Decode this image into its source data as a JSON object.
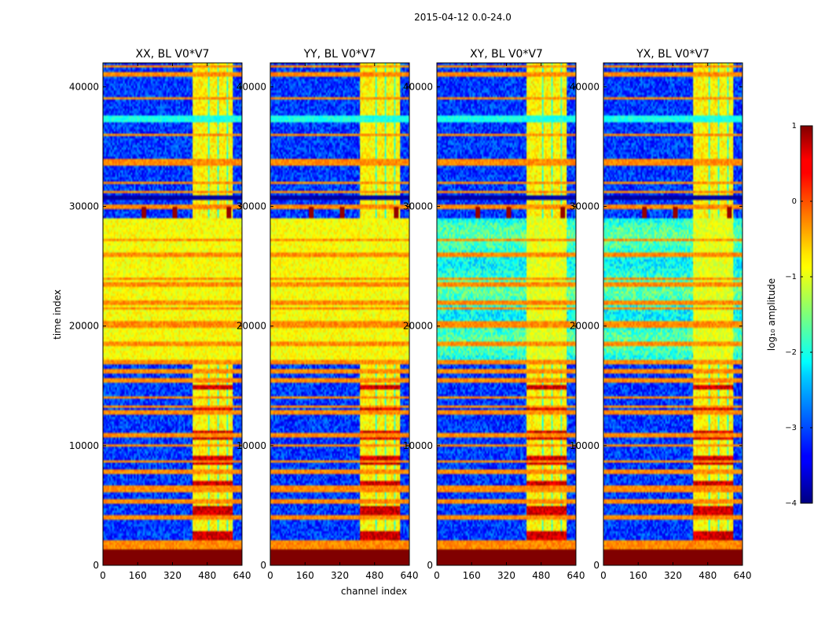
{
  "chart_data": {
    "type": "heatmap",
    "suptitle": "2015-04-12 0.0-24.0",
    "xlabel": "channel index",
    "ylabel": "time index",
    "xlim": [
      0,
      640
    ],
    "ylim": [
      0,
      42000
    ],
    "xticks": [
      0,
      160,
      320,
      480,
      640
    ],
    "yticks": [
      0,
      10000,
      20000,
      30000,
      40000
    ],
    "colorscale": "jet",
    "colorbar": {
      "label": "log₁₀ amplitude",
      "range": [
        -4,
        1
      ],
      "ticks": [
        "1",
        "0",
        "−1",
        "−2",
        "−3",
        "−4"
      ],
      "tick_values": [
        1,
        0,
        -1,
        -2,
        -3,
        -4
      ]
    },
    "panels": [
      {
        "title": "XX, BL V0*V7",
        "pol": "XX"
      },
      {
        "title": "YY, BL V0*V7",
        "pol": "YY"
      },
      {
        "title": "XY, BL V0*V7",
        "pol": "XY"
      },
      {
        "title": "YX, BL V0*V7",
        "pol": "YX"
      }
    ],
    "structure": {
      "saturated_time_range": [
        0,
        1300
      ],
      "bright_channel_range": [
        410,
        600
      ],
      "bright_time_blocks": [
        [
          1700,
          30500
        ],
        [
          30500,
          42000
        ]
      ],
      "strong_band_time_range": [
        17000,
        29000
      ],
      "red_flare_channels": [
        190,
        330,
        580
      ],
      "red_flare_time": 29500,
      "horizontal_flag_times": [
        1500,
        1800,
        2000,
        4000,
        5300,
        6300,
        6500,
        7800,
        8700,
        10000,
        10900,
        12800,
        13300,
        14000,
        15500,
        16200,
        17000,
        18500,
        20000,
        20300,
        21500,
        22000,
        23500,
        24000,
        26000,
        27200,
        30000,
        30700,
        31200,
        32000,
        33600,
        33900,
        36000,
        37200,
        37500,
        39000,
        41000,
        41700
      ]
    }
  }
}
